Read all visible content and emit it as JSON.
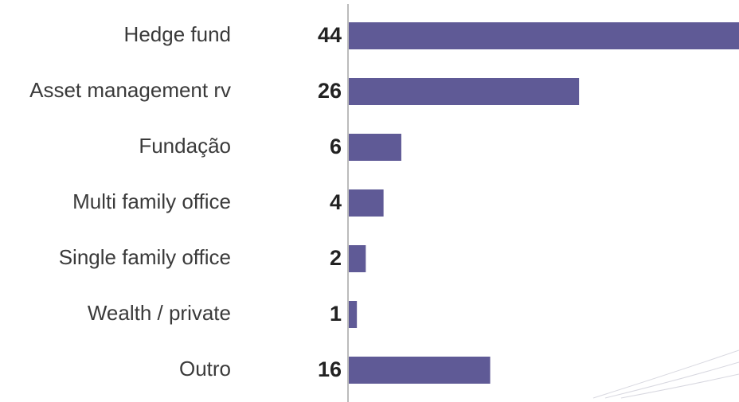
{
  "chart_data": {
    "type": "barh",
    "categories": [
      "Hedge fund",
      "Asset management rv",
      "Fundação",
      "Multi family office",
      "Single family office",
      "Wealth / private",
      "Outro"
    ],
    "values": [
      44,
      26,
      6,
      4,
      2,
      1,
      16
    ],
    "color": "#5f5a96",
    "xlim": [
      0,
      44
    ]
  }
}
